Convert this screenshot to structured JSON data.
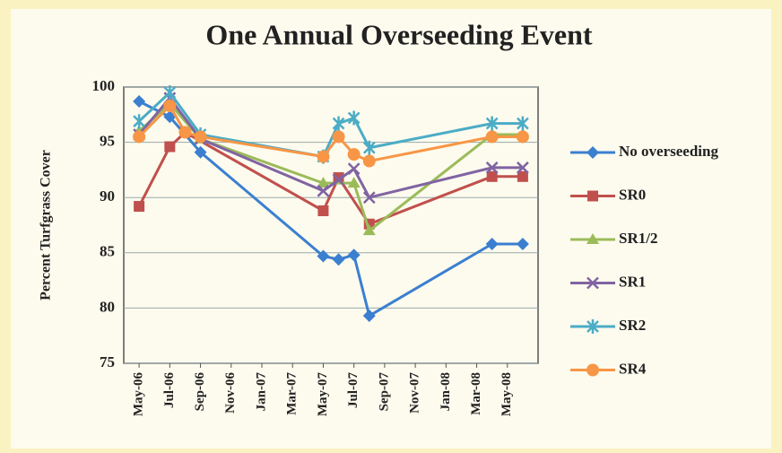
{
  "chart_data": {
    "type": "line",
    "title": "One Annual Overseeding Event",
    "y_label": "Percent Turfgrass Cover",
    "xlim": [
      "2006-04",
      "2008-07"
    ],
    "xticks": [
      {
        "value": "2006-05",
        "label": "May-06"
      },
      {
        "value": "2006-07",
        "label": "Jul-06"
      },
      {
        "value": "2006-09",
        "label": "Sep-06"
      },
      {
        "value": "2006-11",
        "label": "Nov-06"
      },
      {
        "value": "2007-01",
        "label": "Jan-07"
      },
      {
        "value": "2007-03",
        "label": "Mar-07"
      },
      {
        "value": "2007-05",
        "label": "May-07"
      },
      {
        "value": "2007-07",
        "label": "Jul-07"
      },
      {
        "value": "2007-09",
        "label": "Sep-07"
      },
      {
        "value": "2007-11",
        "label": "Nov-07"
      },
      {
        "value": "2008-01",
        "label": "Jan-08"
      },
      {
        "value": "2008-03",
        "label": "Mar-08"
      },
      {
        "value": "2008-05",
        "label": "May-08"
      }
    ],
    "ylim": [
      75,
      100
    ],
    "yticks": [
      75,
      80,
      85,
      90,
      95,
      100
    ],
    "grid": true,
    "legend": "right",
    "series": [
      {
        "name": "No overseeding",
        "color": "#3b7fd0",
        "marker": "diamond",
        "x": [
          "2006-05",
          "2006-07",
          "2006-09",
          "2007-05",
          "2007-06",
          "2007-07",
          "2007-08",
          "2008-04",
          "2008-06"
        ],
        "values": [
          98.7,
          97.3,
          94.1,
          84.7,
          84.4,
          84.8,
          79.3,
          85.8,
          85.8
        ]
      },
      {
        "name": "SR0",
        "color": "#c0504d",
        "marker": "square",
        "x": [
          "2006-05",
          "2006-07",
          "2006-08",
          "2007-05",
          "2007-06",
          "2007-08",
          "2008-04",
          "2008-06"
        ],
        "values": [
          89.2,
          94.6,
          95.9,
          88.8,
          91.8,
          87.6,
          91.9,
          91.9
        ]
      },
      {
        "name": "SR1/2",
        "color": "#9bbb59",
        "marker": "triangle",
        "x": [
          "2006-05",
          "2006-07",
          "2006-09",
          "2007-05",
          "2007-07",
          "2007-08",
          "2008-04",
          "2008-06"
        ],
        "values": [
          96,
          98.5,
          95.3,
          91.3,
          91.3,
          87,
          95.7,
          95.7
        ]
      },
      {
        "name": "SR1",
        "color": "#8064a2",
        "marker": "x",
        "x": [
          "2006-05",
          "2006-07",
          "2006-09",
          "2007-05",
          "2007-06",
          "2007-07",
          "2007-08",
          "2008-04",
          "2008-06"
        ],
        "values": [
          95.7,
          99,
          95.3,
          90.6,
          91.6,
          92.6,
          90,
          92.7,
          92.7
        ]
      },
      {
        "name": "SR2",
        "color": "#4bacc6",
        "marker": "star",
        "x": [
          "2006-05",
          "2006-07",
          "2006-09",
          "2007-05",
          "2007-06",
          "2007-07",
          "2007-08",
          "2008-04",
          "2008-06"
        ],
        "values": [
          96.9,
          99.5,
          95.7,
          93.7,
          96.7,
          97.2,
          94.5,
          96.7,
          96.7
        ]
      },
      {
        "name": "SR4",
        "color": "#f79646",
        "marker": "circle",
        "x": [
          "2006-05",
          "2006-07",
          "2006-08",
          "2006-09",
          "2007-05",
          "2007-06",
          "2007-07",
          "2007-08",
          "2008-04",
          "2008-06"
        ],
        "values": [
          95.5,
          98.3,
          95.9,
          95.5,
          93.7,
          95.5,
          93.9,
          93.3,
          95.5,
          95.5
        ]
      }
    ]
  }
}
